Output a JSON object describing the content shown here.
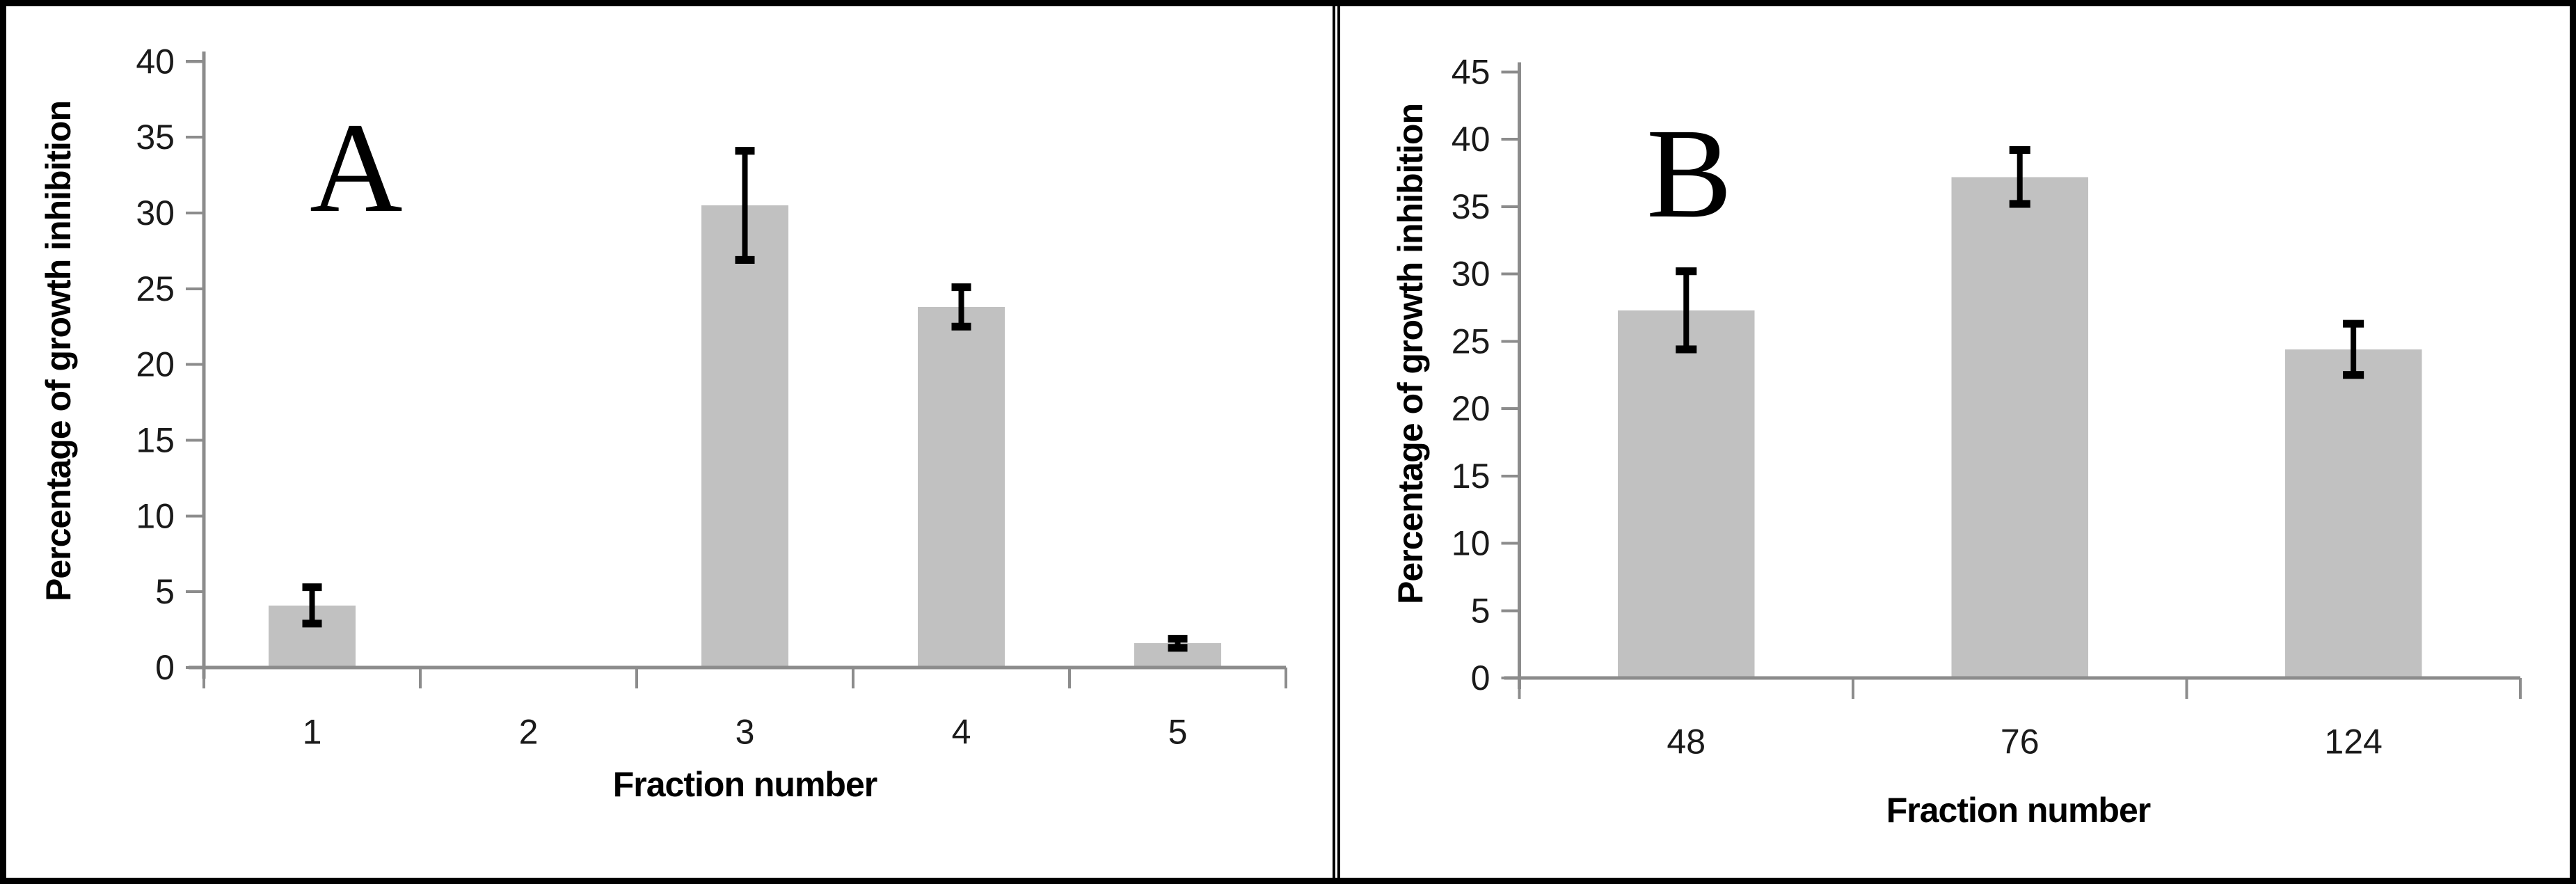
{
  "figure": {
    "description": "Two-panel bar chart of percentage of growth inhibition by fraction number",
    "colors": {
      "bar": "#c1c1c1",
      "axis": "#8c8c8c",
      "error_bar": "#000000",
      "tick_text": "#1a1a1a",
      "title_text": "#000000",
      "border": "#000000",
      "background": "#ffffff"
    }
  },
  "chart_data": [
    {
      "type": "bar",
      "panel_label": "A",
      "title": "",
      "xlabel": "Fraction number",
      "ylabel": "Percentage of growth inhibition",
      "categories": [
        "1",
        "2",
        "3",
        "4",
        "5"
      ],
      "values": [
        4.1,
        0,
        30.5,
        23.8,
        1.6
      ],
      "error_bars": [
        1.2,
        0,
        3.6,
        1.3,
        0.3
      ],
      "ylim": [
        0,
        40
      ],
      "ytick_step": 5,
      "grid": false,
      "legend": null
    },
    {
      "type": "bar",
      "panel_label": "B",
      "title": "",
      "xlabel": "Fraction number",
      "ylabel": "Percentage of growth inhibition",
      "categories": [
        "48",
        "76",
        "124"
      ],
      "values": [
        27.3,
        37.2,
        24.4
      ],
      "error_bars": [
        2.9,
        2.0,
        1.9
      ],
      "ylim": [
        0,
        45
      ],
      "ytick_step": 5,
      "grid": false,
      "legend": null
    }
  ]
}
